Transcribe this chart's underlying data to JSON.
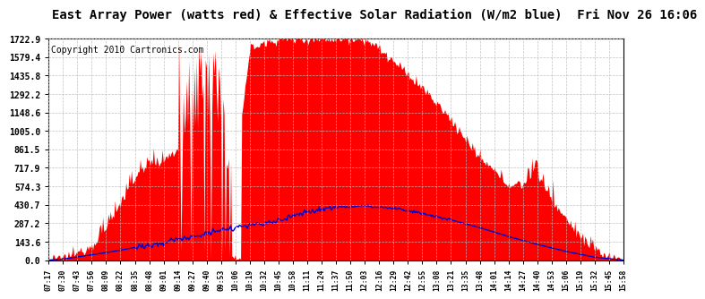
{
  "title": "East Array Power (watts red) & Effective Solar Radiation (W/m2 blue)  Fri Nov 26 16:06",
  "copyright": "Copyright 2010 Cartronics.com",
  "background_color": "#ffffff",
  "plot_bg_color": "#ffffff",
  "grid_color": "#bbbbbb",
  "yticks": [
    0.0,
    143.6,
    287.2,
    430.7,
    574.3,
    717.9,
    861.5,
    1005.0,
    1148.6,
    1292.2,
    1435.8,
    1579.4,
    1722.9
  ],
  "ymax": 1722.9,
  "xtick_labels": [
    "07:17",
    "07:30",
    "07:43",
    "07:56",
    "08:09",
    "08:22",
    "08:35",
    "08:48",
    "09:01",
    "09:14",
    "09:27",
    "09:40",
    "09:53",
    "10:06",
    "10:19",
    "10:32",
    "10:45",
    "10:58",
    "11:11",
    "11:24",
    "11:37",
    "11:50",
    "12:03",
    "12:16",
    "12:29",
    "12:42",
    "12:55",
    "13:08",
    "13:21",
    "13:35",
    "13:48",
    "14:01",
    "14:14",
    "14:27",
    "14:40",
    "14:53",
    "15:06",
    "15:19",
    "15:32",
    "15:45",
    "15:58"
  ],
  "red_fill_color": "#ff0000",
  "blue_line_color": "#0000cc",
  "title_fontsize": 10,
  "copyright_fontsize": 7
}
